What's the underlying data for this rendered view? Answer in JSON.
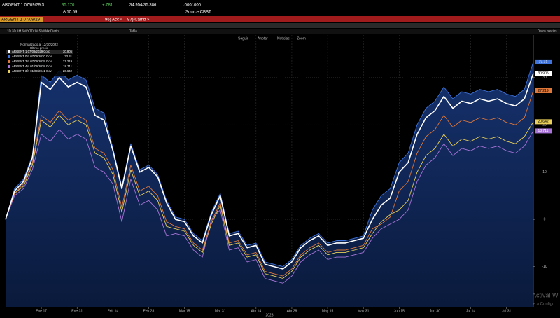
{
  "header": {
    "ticker": "ARGENT 1 07/09/29 $",
    "price": "35.170",
    "change": "+.781",
    "bid_ask": "34.954/35.386",
    "yield": ".000/.000",
    "time": "A 10:59",
    "source": "Source CBBT",
    "actions": "96) Acc »",
    "compare": "97) Camb »",
    "security": "ARGENT 1 07/09/29",
    "ranges": "1D 3D 1M 6M YTD 1A 5A Máx Diario",
    "table": "Tabla",
    "tools": [
      "Seguir",
      "Anotar",
      "Noticias",
      "Zoom"
    ],
    "data_menu": "Datos precios",
    "legend_title": "Normalizado al 12/30/2022",
    "legend_subtitle": "Último precio",
    "watermark": "Actival Windo",
    "watermark_sub": "Ve a Configu"
  },
  "chart_data": {
    "type": "line",
    "x_label": "2023",
    "categories": [
      null,
      null,
      null,
      null,
      "Ene 17",
      null,
      null,
      null,
      "Ene 31",
      null,
      null,
      null,
      "Feb 14",
      null,
      null,
      null,
      "Feb 28",
      null,
      null,
      null,
      "Mar 15",
      null,
      null,
      null,
      "Mar 31",
      null,
      null,
      null,
      "Abr 14",
      null,
      null,
      null,
      "Abr 28",
      null,
      null,
      null,
      "May 15",
      null,
      null,
      null,
      "May 31",
      null,
      null,
      null,
      "Jun 15",
      null,
      null,
      null,
      "Jun 30",
      null,
      null,
      null,
      "Jul 14",
      null,
      null,
      null,
      "Jul 31",
      null,
      null,
      null
    ],
    "ylim": [
      -18.5,
      39
    ],
    "yticks": [
      -10,
      0,
      10,
      20,
      30
    ],
    "grid": true,
    "series": [
      {
        "name": "ARGENT 1 07/09/2029 Corp",
        "color": "#ffffff",
        "values": [
          0,
          6,
          8,
          13,
          29,
          27.5,
          30,
          28,
          29,
          28,
          22,
          21,
          14.5,
          6.5,
          15.5,
          10,
          11,
          9,
          3.5,
          0,
          -0.5,
          -3.5,
          -5,
          1,
          5,
          -3.5,
          -3,
          -6,
          -5.5,
          -9.5,
          -10,
          -10.5,
          -9,
          -6,
          -4.5,
          -3.5,
          -5.5,
          -5,
          -5,
          -4.5,
          -4,
          0,
          3,
          4.5,
          10,
          12,
          18,
          21.5,
          23,
          26,
          23.5,
          25,
          24.5,
          25.5,
          25,
          25.5,
          24.5,
          24,
          25.5,
          30.905
        ]
      },
      {
        "name": "ARGENT 0½ 07/09/2030 Govt",
        "color": "#3f74dc",
        "area": true,
        "values": [
          0,
          6.5,
          8.5,
          13.5,
          30.5,
          29,
          31.5,
          29.5,
          30.5,
          29.5,
          23.5,
          22.5,
          15,
          7,
          16,
          10.5,
          11.5,
          9.5,
          4,
          0.5,
          0,
          -3,
          -4.5,
          1.5,
          5.5,
          -3,
          -2.5,
          -5.5,
          -5,
          -9,
          -9.5,
          -10,
          -8.5,
          -5.5,
          -4,
          -3,
          -5,
          -4.5,
          -4.5,
          -4,
          -3.5,
          2,
          5,
          6.5,
          12,
          14,
          20,
          23.5,
          25,
          28,
          25.5,
          27,
          26.5,
          27.5,
          27,
          27.5,
          26.5,
          26,
          27.5,
          33.31
        ]
      },
      {
        "name": "ARGENT 3½ 07/09/2035 Govt",
        "color": "#e0783a",
        "values": [
          0,
          5.5,
          7.5,
          12,
          22,
          20.5,
          23,
          21,
          22,
          21,
          15,
          14,
          10.5,
          2.5,
          11.5,
          6,
          7,
          5,
          -0.5,
          -1.5,
          -2,
          -5,
          -6.5,
          -0.5,
          3.5,
          -5,
          -4.5,
          -7.5,
          -7,
          -11,
          -11.5,
          -12,
          -10.5,
          -7.5,
          -6,
          -5,
          -7,
          -6.5,
          -6.5,
          -6,
          -5.5,
          -2,
          -1,
          0.5,
          6,
          8,
          14,
          17.5,
          19,
          22,
          19.5,
          21,
          20.5,
          21.5,
          21,
          21.5,
          20.5,
          20,
          21.5,
          27.219
        ]
      },
      {
        "name": "ARGENT 4¼ 01/09/2038 Govt",
        "color": "#a874d8",
        "values": [
          0,
          5,
          6.5,
          10.5,
          18,
          16.5,
          19,
          17,
          18,
          17,
          11,
          10,
          7.5,
          -0.5,
          8.5,
          3,
          4,
          2,
          -3.5,
          -3,
          -3.5,
          -6.5,
          -8,
          0,
          2,
          -6.5,
          -6,
          -9,
          -8.5,
          -12.5,
          -13,
          -13.5,
          -12,
          -9,
          -7.5,
          -6.5,
          -8.5,
          -8,
          -8,
          -7.5,
          -7,
          -4,
          -2,
          -1,
          0,
          2,
          8,
          11.5,
          13,
          16,
          13.5,
          15,
          14.5,
          15.5,
          15,
          15.5,
          14.5,
          14,
          15.5,
          18.711
        ]
      },
      {
        "name": "ARGENT 3⅞ 01/09/2041 Govt",
        "color": "#e8d05a",
        "values": [
          0,
          5.5,
          7,
          11.5,
          21,
          19.5,
          22,
          20,
          21,
          20,
          14,
          13,
          9.5,
          1.5,
          10.5,
          5,
          6,
          4,
          -1.5,
          -2,
          -2.5,
          -5.5,
          -7,
          -1,
          3,
          -5.5,
          -5,
          -8,
          -7.5,
          -11.5,
          -12,
          -12.5,
          -11,
          -8,
          -6.5,
          -5.5,
          -7.5,
          -7,
          -7,
          -6.5,
          -6,
          -3,
          -0.5,
          1,
          2,
          4,
          10,
          13.5,
          15,
          18,
          15.5,
          17,
          16.5,
          17.5,
          17,
          17.5,
          16.5,
          16,
          17.5,
          20.642
        ]
      }
    ]
  }
}
